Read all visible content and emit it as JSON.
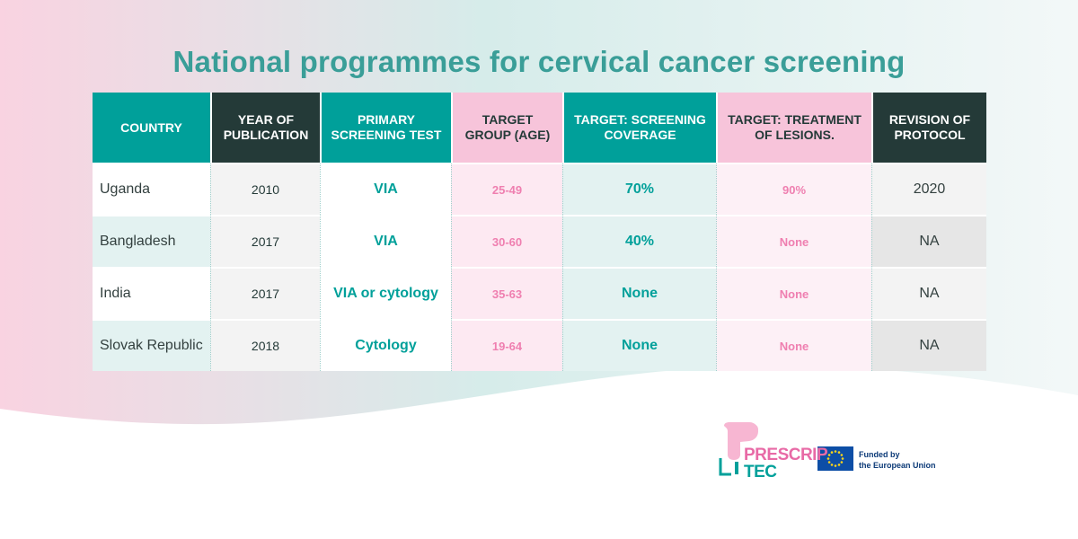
{
  "title": "National programmes for cervical cancer screening",
  "table": {
    "headers": [
      {
        "label": "COUNTRY",
        "style": "teal"
      },
      {
        "label": "YEAR OF PUBLICATION",
        "style": "dark"
      },
      {
        "label": "PRIMARY SCREENING TEST",
        "style": "teal"
      },
      {
        "label": "TARGET GROUP (AGE)",
        "style": "pink"
      },
      {
        "label": "TARGET: SCREENING COVERAGE",
        "style": "teal"
      },
      {
        "label": "TARGET: TREATMENT OF LESIONS.",
        "style": "pink"
      },
      {
        "label": "REVISION OF PROTOCOL",
        "style": "dark"
      }
    ],
    "rows": [
      {
        "country": "Uganda",
        "year": "2010",
        "test": "VIA",
        "age": "25-49",
        "coverage": "70%",
        "treatment": "90%",
        "revision": "2020"
      },
      {
        "country": "Bangladesh",
        "year": "2017",
        "test": "VIA",
        "age": "30-60",
        "coverage": "40%",
        "treatment": "None",
        "revision": "NA"
      },
      {
        "country": "India",
        "year": "2017",
        "test": "VIA or cytology",
        "age": "35-63",
        "coverage": "None",
        "treatment": "None",
        "revision": "NA"
      },
      {
        "country": "Slovak Republic",
        "year": "2018",
        "test": "Cytology",
        "age": "19-64",
        "coverage": "None",
        "treatment": "None",
        "revision": "NA"
      }
    ]
  },
  "logos": {
    "prescriptec_line1": "PRESCRIP",
    "prescriptec_line2": "TEC",
    "eu_line1": "Funded by",
    "eu_line2": "the European Union"
  },
  "colors": {
    "teal": "#00a09a",
    "dark": "#243a38",
    "pink": "#f7c4da",
    "title": "#3a9e98",
    "accent_pink": "#ef7fb0"
  }
}
